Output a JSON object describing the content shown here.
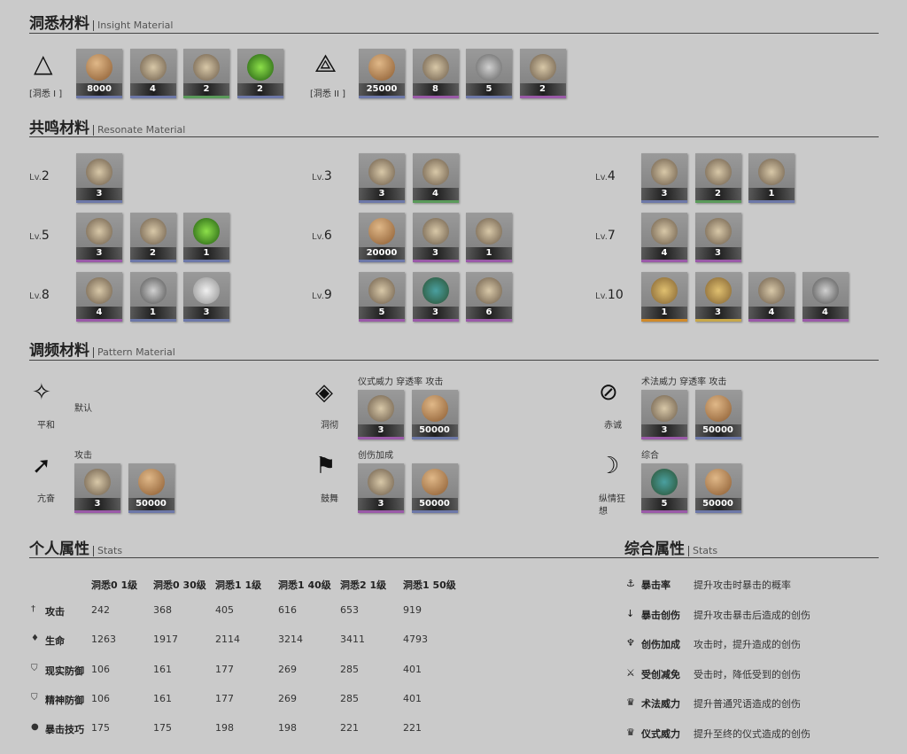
{
  "insight": {
    "title_zh": "洞悉材料",
    "title_en": "Insight Material",
    "groups": [
      {
        "label": "[洞悉 I ]",
        "icon": "triangle-icon",
        "items": [
          {
            "icon": "coin-icon",
            "count": "8000",
            "rarity": "#6d78a8"
          },
          {
            "icon": "scroll-icon",
            "count": "4",
            "rarity": "#6d78a8"
          },
          {
            "icon": "cloth-icon",
            "count": "2",
            "rarity": "#5a9a5a"
          },
          {
            "icon": "green-jar-icon",
            "count": "2",
            "rarity": "#6d78a8"
          }
        ]
      },
      {
        "label": "[洞悉 II ]",
        "icon": "double-triangle-icon",
        "items": [
          {
            "icon": "coin-icon",
            "count": "25000",
            "rarity": "#6d78a8"
          },
          {
            "icon": "herb-icon",
            "count": "8",
            "rarity": "#9a5aa8"
          },
          {
            "icon": "metal-plates-icon",
            "count": "5",
            "rarity": "#6d78a8"
          },
          {
            "icon": "flower-vase-icon",
            "count": "2",
            "rarity": "#9a5aa8"
          }
        ]
      }
    ]
  },
  "resonate": {
    "title_zh": "共鸣材料",
    "title_en": "Resonate Material",
    "levels": [
      {
        "prefix": "Lv.",
        "level": "2",
        "items": [
          {
            "icon": "feather-icon",
            "count": "3",
            "rarity": "#6d78a8"
          }
        ]
      },
      {
        "prefix": "Lv.",
        "level": "3",
        "items": [
          {
            "icon": "feather-icon",
            "count": "3",
            "rarity": "#6d78a8"
          },
          {
            "icon": "bell-icon",
            "count": "4",
            "rarity": "#5a9a5a"
          }
        ]
      },
      {
        "prefix": "Lv.",
        "level": "4",
        "items": [
          {
            "icon": "feather-icon",
            "count": "3",
            "rarity": "#6d78a8"
          },
          {
            "icon": "cloth-icon",
            "count": "2",
            "rarity": "#5a9a5a"
          },
          {
            "icon": "medal-icon",
            "count": "1",
            "rarity": "#6d78a8"
          }
        ]
      },
      {
        "prefix": "Lv.",
        "level": "5",
        "items": [
          {
            "icon": "shell-icon",
            "count": "3",
            "rarity": "#9a5aa8"
          },
          {
            "icon": "card-icon",
            "count": "2",
            "rarity": "#6d78a8"
          },
          {
            "icon": "green-jar-icon",
            "count": "1",
            "rarity": "#6d78a8"
          }
        ]
      },
      {
        "prefix": "Lv.",
        "level": "6",
        "items": [
          {
            "icon": "coin-icon",
            "count": "20000",
            "rarity": "#6d78a8"
          },
          {
            "icon": "shell-icon",
            "count": "3",
            "rarity": "#9a5aa8"
          },
          {
            "icon": "figurine-icon",
            "count": "1",
            "rarity": "#9a5aa8"
          }
        ]
      },
      {
        "prefix": "Lv.",
        "level": "7",
        "items": [
          {
            "icon": "shell-icon",
            "count": "4",
            "rarity": "#9a5aa8"
          },
          {
            "icon": "statue-icon",
            "count": "3",
            "rarity": "#9a5aa8"
          }
        ]
      },
      {
        "prefix": "Lv.",
        "level": "8",
        "items": [
          {
            "icon": "shell-icon",
            "count": "4",
            "rarity": "#9a5aa8"
          },
          {
            "icon": "metal-box-icon",
            "count": "1",
            "rarity": "#6d78a8"
          },
          {
            "icon": "bowl-icon",
            "count": "3",
            "rarity": "#6d78a8"
          }
        ]
      },
      {
        "prefix": "Lv.",
        "level": "9",
        "items": [
          {
            "icon": "shell-icon",
            "count": "5",
            "rarity": "#9a5aa8"
          },
          {
            "icon": "bird-icon",
            "count": "3",
            "rarity": "#9a5aa8"
          },
          {
            "icon": "metal-parts-icon",
            "count": "6",
            "rarity": "#9a5aa8"
          }
        ]
      },
      {
        "prefix": "Lv.",
        "level": "10",
        "items": [
          {
            "icon": "crystal-icon",
            "count": "1",
            "rarity": "#d08a2a"
          },
          {
            "icon": "crystal-icon",
            "count": "3",
            "rarity": "#c8a84a"
          },
          {
            "icon": "bust-icon",
            "count": "4",
            "rarity": "#9a5aa8"
          },
          {
            "icon": "metal-box-icon",
            "count": "4",
            "rarity": "#9a5aa8"
          }
        ]
      }
    ]
  },
  "pattern": {
    "title_zh": "调频材料",
    "title_en": "Pattern Material",
    "entries": [
      {
        "name": "平和",
        "icon": "diamond-cross-icon",
        "glyph": "✧",
        "desc": "默认",
        "items": []
      },
      {
        "name": "洞彻",
        "icon": "shield-arrow-icon",
        "glyph": "◈",
        "desc": "仪式威力 穿透率 攻击",
        "items": [
          {
            "icon": "silver-ornament-icon",
            "count": "3",
            "rarity": "#9a5aa8"
          },
          {
            "icon": "coin-icon",
            "count": "50000",
            "rarity": "#6d78a8"
          }
        ]
      },
      {
        "name": "赤诚",
        "icon": "torch-icon",
        "glyph": "⊘",
        "desc": "术法威力 穿透率 攻击",
        "items": [
          {
            "icon": "silver-branch-icon",
            "count": "3",
            "rarity": "#9a5aa8"
          },
          {
            "icon": "coin-icon",
            "count": "50000",
            "rarity": "#6d78a8"
          }
        ]
      },
      {
        "name": "亢奋",
        "icon": "circle-arrow-icon",
        "glyph": "➚",
        "desc": "攻击",
        "items": [
          {
            "icon": "amulet-icon",
            "count": "3",
            "rarity": "#9a5aa8"
          },
          {
            "icon": "coin-icon",
            "count": "50000",
            "rarity": "#6d78a8"
          }
        ]
      },
      {
        "name": "鼓舞",
        "icon": "flag-swoosh-icon",
        "glyph": "⚑",
        "desc": "创伤加成",
        "items": [
          {
            "icon": "silver-ornament-icon",
            "count": "3",
            "rarity": "#9a5aa8"
          },
          {
            "icon": "coin-icon",
            "count": "50000",
            "rarity": "#6d78a8"
          }
        ]
      },
      {
        "name": "纵情狂想",
        "icon": "crescent-icon",
        "glyph": "☽",
        "desc": "综合",
        "items": [
          {
            "icon": "bird-icon",
            "count": "5",
            "rarity": "#9a5aa8"
          },
          {
            "icon": "coin-icon",
            "count": "50000",
            "rarity": "#6d78a8"
          }
        ]
      }
    ]
  },
  "stats": {
    "title_zh": "个人属性",
    "title_en": "Stats",
    "columns": [
      "洞悉0 1级",
      "洞悉0 30级",
      "洞悉1 1级",
      "洞悉1 40级",
      "洞悉2 1级",
      "洞悉1 50级"
    ],
    "rows": [
      {
        "icon": "dagger-icon",
        "glyph": "†",
        "label": "攻击",
        "values": [
          "242",
          "368",
          "405",
          "616",
          "653",
          "919"
        ]
      },
      {
        "icon": "drop-icon",
        "glyph": "♦",
        "label": "生命",
        "values": [
          "1263",
          "1917",
          "2114",
          "3214",
          "3411",
          "4793"
        ]
      },
      {
        "icon": "shield-icon",
        "glyph": "⛉",
        "label": "现实防御",
        "values": [
          "106",
          "161",
          "177",
          "269",
          "285",
          "401"
        ]
      },
      {
        "icon": "mind-shield-icon",
        "glyph": "⛉",
        "label": "精神防御",
        "values": [
          "106",
          "161",
          "177",
          "269",
          "285",
          "401"
        ]
      },
      {
        "icon": "crit-skill-icon",
        "glyph": "●",
        "label": "暴击技巧",
        "values": [
          "175",
          "175",
          "198",
          "198",
          "221",
          "221"
        ]
      }
    ]
  },
  "overall": {
    "title_zh": "综合属性",
    "title_en": "Stats",
    "rows": [
      {
        "icon": "anchor-icon",
        "glyph": "⚓",
        "label": "暴击率",
        "desc": "提升攻击时暴击的概率"
      },
      {
        "icon": "arrow-down-icon",
        "glyph": "↓",
        "label": "暴击创伤",
        "desc": "提升攻击暴击后造成的创伤"
      },
      {
        "icon": "claw-icon",
        "glyph": "♆",
        "label": "创伤加成",
        "desc": "攻击时，提升造成的创伤"
      },
      {
        "icon": "broken-sword-icon",
        "glyph": "⚔",
        "label": "受创减免",
        "desc": "受击时，降低受到的创伤"
      },
      {
        "icon": "crown-icon",
        "glyph": "♛",
        "label": "术法威力",
        "desc": "提升普通咒语造成的创伤"
      },
      {
        "icon": "crown-icon",
        "glyph": "♛",
        "label": "仪式威力",
        "desc": "提升至终的仪式造成的创伤"
      }
    ]
  }
}
